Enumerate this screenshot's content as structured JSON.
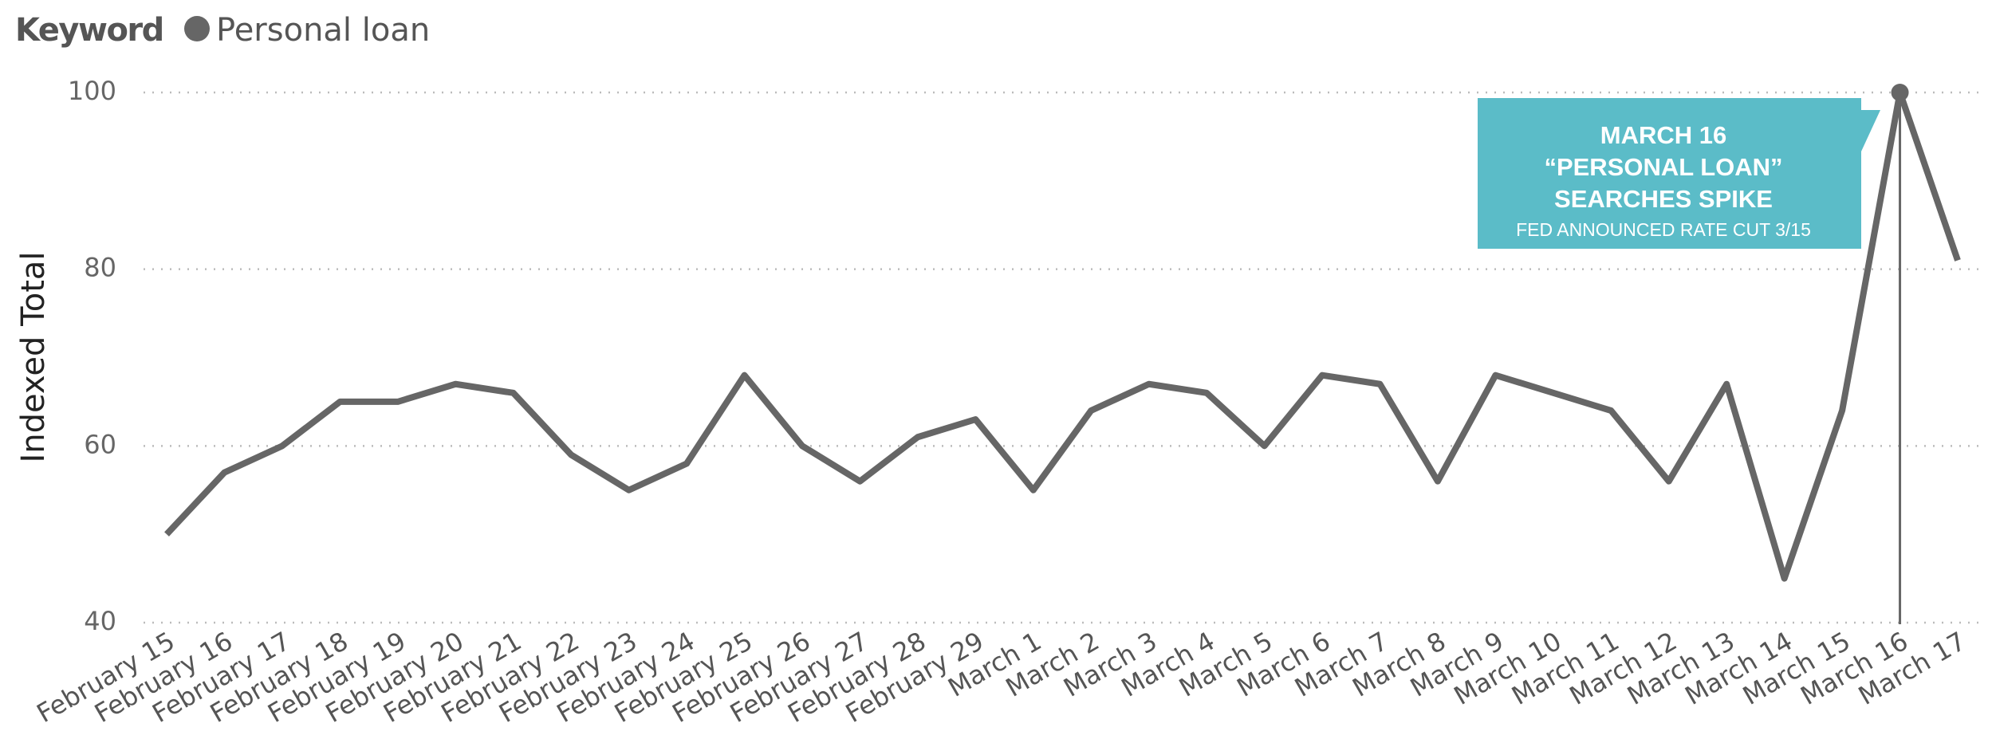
{
  "chart_data": {
    "type": "line",
    "legend_title": "Keyword",
    "y_label": "Indexed Total",
    "categories": [
      "February 15",
      "February 16",
      "February 17",
      "February 18",
      "February 19",
      "February 20",
      "February 21",
      "February 22",
      "February 23",
      "February 24",
      "February 25",
      "February 26",
      "February 27",
      "February 28",
      "February 29",
      "March 1",
      "March 2",
      "March 3",
      "March 4",
      "March 5",
      "March 6",
      "March 7",
      "March 8",
      "March 9",
      "March 10",
      "March 11",
      "March 12",
      "March 13",
      "March 14",
      "March 15",
      "March 16",
      "March 17"
    ],
    "series": [
      {
        "name": "Personal loan",
        "color": "#666666",
        "values": [
          50,
          57,
          60,
          65,
          65,
          67,
          66,
          59,
          55,
          58,
          68,
          60,
          56,
          61,
          63,
          55,
          64,
          67,
          66,
          60,
          68,
          67,
          56,
          68,
          66,
          64,
          56,
          67,
          45,
          64,
          100,
          81
        ]
      }
    ],
    "ylim": [
      40,
      100
    ],
    "yticks": [
      40,
      60,
      80,
      100
    ],
    "grid": true,
    "highlight": "March 16",
    "annotation": {
      "color": "#5bbcc8",
      "lines": [
        "MARCH 16",
        "“PERSONAL LOAN”",
        "SEARCHES SPIKE"
      ],
      "note": "FED ANNOUNCED RATE CUT 3/15"
    }
  }
}
